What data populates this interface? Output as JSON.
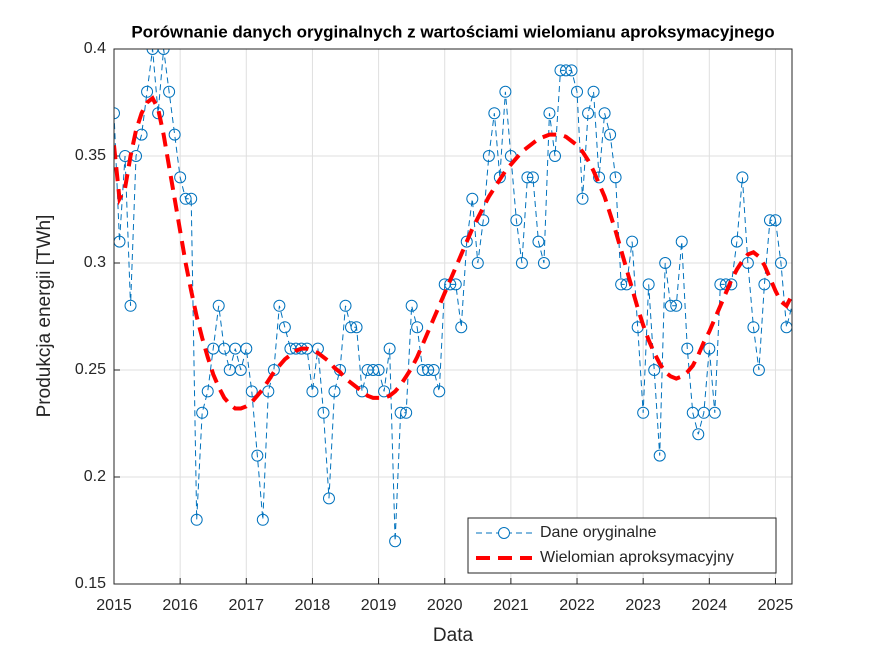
{
  "chart_data": {
    "type": "line",
    "title": "Porównanie danych oryginalnych z wartościami wielomianu aproksymacyjnego",
    "xlabel": "Data",
    "ylabel": "Produkcja energii [TWh]",
    "x": [
      2015,
      2015.083,
      2015.167,
      2015.25,
      2015.333,
      2015.417,
      2015.5,
      2015.583,
      2015.667,
      2015.75,
      2015.833,
      2015.917,
      2016,
      2016.083,
      2016.167,
      2016.25,
      2016.333,
      2016.417,
      2016.5,
      2016.583,
      2016.667,
      2016.75,
      2016.833,
      2016.917,
      2017,
      2017.083,
      2017.167,
      2017.25,
      2017.333,
      2017.417,
      2017.5,
      2017.583,
      2017.667,
      2017.75,
      2017.833,
      2017.917,
      2018,
      2018.083,
      2018.167,
      2018.25,
      2018.333,
      2018.417,
      2018.5,
      2018.583,
      2018.667,
      2018.75,
      2018.833,
      2018.917,
      2019,
      2019.083,
      2019.167,
      2019.25,
      2019.333,
      2019.417,
      2019.5,
      2019.583,
      2019.667,
      2019.75,
      2019.833,
      2019.917,
      2020,
      2020.083,
      2020.167,
      2020.25,
      2020.333,
      2020.417,
      2020.5,
      2020.583,
      2020.667,
      2020.75,
      2020.833,
      2020.917,
      2021,
      2021.083,
      2021.167,
      2021.25,
      2021.333,
      2021.417,
      2021.5,
      2021.583,
      2021.667,
      2021.75,
      2021.833,
      2021.917,
      2022,
      2022.083,
      2022.167,
      2022.25,
      2022.333,
      2022.417,
      2022.5,
      2022.583,
      2022.667,
      2022.75,
      2022.833,
      2022.917,
      2023,
      2023.083,
      2023.167,
      2023.25,
      2023.333,
      2023.417,
      2023.5,
      2023.583,
      2023.667,
      2023.75,
      2023.833,
      2023.917,
      2024,
      2024.083,
      2024.167,
      2024.25,
      2024.333,
      2024.417,
      2024.5,
      2024.583,
      2024.667,
      2024.75,
      2024.833,
      2024.917,
      2025,
      2025.083,
      2025.167,
      2025.25
    ],
    "series": [
      {
        "name": "Dane oryginalne",
        "color": "#0072BD",
        "marker": "o",
        "line": "dashed",
        "values": [
          0.37,
          0.31,
          0.35,
          0.28,
          0.35,
          0.36,
          0.38,
          0.4,
          0.37,
          0.4,
          0.38,
          0.36,
          0.34,
          0.33,
          0.33,
          0.18,
          0.23,
          0.24,
          0.26,
          0.28,
          0.26,
          0.25,
          0.26,
          0.25,
          0.26,
          0.24,
          0.21,
          0.18,
          0.24,
          0.25,
          0.28,
          0.27,
          0.26,
          0.26,
          0.26,
          0.26,
          0.24,
          0.26,
          0.23,
          0.19,
          0.24,
          0.25,
          0.28,
          0.27,
          0.27,
          0.24,
          0.25,
          0.25,
          0.25,
          0.24,
          0.26,
          0.17,
          0.23,
          0.23,
          0.28,
          0.27,
          0.25,
          0.25,
          0.25,
          0.24,
          0.29,
          0.29,
          0.29,
          0.27,
          0.31,
          0.33,
          0.3,
          0.32,
          0.35,
          0.37,
          0.34,
          0.38,
          0.35,
          0.32,
          0.3,
          0.34,
          0.34,
          0.31,
          0.3,
          0.37,
          0.35,
          0.39,
          0.39,
          0.39,
          0.38,
          0.33,
          0.37,
          0.38,
          0.34,
          0.37,
          0.36,
          0.34,
          0.29,
          0.29,
          0.31,
          0.27,
          0.23,
          0.29,
          0.25,
          0.21,
          0.3,
          0.28,
          0.28,
          0.31,
          0.26,
          0.23,
          0.22,
          0.23,
          0.26,
          0.23,
          0.29,
          0.29,
          0.29,
          0.31,
          0.34,
          0.3,
          0.27,
          0.25,
          0.29,
          0.32,
          0.32,
          0.3,
          0.27,
          0.28
        ]
      },
      {
        "name": "Wielomian aproksymacyjny",
        "color": "#FF0000",
        "line": "dashed",
        "values": [
          0.355,
          0.33,
          0.335,
          0.35,
          0.362,
          0.37,
          0.375,
          0.377,
          0.372,
          0.36,
          0.345,
          0.33,
          0.315,
          0.3,
          0.287,
          0.275,
          0.265,
          0.256,
          0.248,
          0.242,
          0.237,
          0.234,
          0.232,
          0.232,
          0.233,
          0.235,
          0.238,
          0.241,
          0.245,
          0.249,
          0.252,
          0.255,
          0.257,
          0.259,
          0.26,
          0.26,
          0.259,
          0.258,
          0.256,
          0.254,
          0.251,
          0.249,
          0.246,
          0.244,
          0.242,
          0.24,
          0.238,
          0.237,
          0.237,
          0.237,
          0.238,
          0.24,
          0.243,
          0.247,
          0.251,
          0.256,
          0.262,
          0.268,
          0.274,
          0.28,
          0.286,
          0.292,
          0.298,
          0.304,
          0.31,
          0.316,
          0.321,
          0.326,
          0.331,
          0.335,
          0.339,
          0.343,
          0.346,
          0.349,
          0.352,
          0.354,
          0.356,
          0.358,
          0.359,
          0.36,
          0.36,
          0.36,
          0.359,
          0.357,
          0.355,
          0.352,
          0.348,
          0.343,
          0.337,
          0.331,
          0.323,
          0.315,
          0.306,
          0.297,
          0.288,
          0.279,
          0.271,
          0.264,
          0.258,
          0.253,
          0.249,
          0.247,
          0.246,
          0.247,
          0.249,
          0.252,
          0.257,
          0.263,
          0.268,
          0.274,
          0.28,
          0.286,
          0.292,
          0.297,
          0.301,
          0.304,
          0.305,
          0.303,
          0.299,
          0.293,
          0.287,
          0.282,
          0.28,
          0.285
        ]
      }
    ],
    "xlim": [
      2015,
      2025.25
    ],
    "xticks": [
      2015,
      2016,
      2017,
      2018,
      2019,
      2020,
      2021,
      2022,
      2023,
      2024,
      2025
    ],
    "ylim": [
      0.15,
      0.4
    ],
    "yticks": [
      0.15,
      0.2,
      0.25,
      0.3,
      0.35,
      0.4
    ],
    "grid": true,
    "legend": "southeast"
  }
}
